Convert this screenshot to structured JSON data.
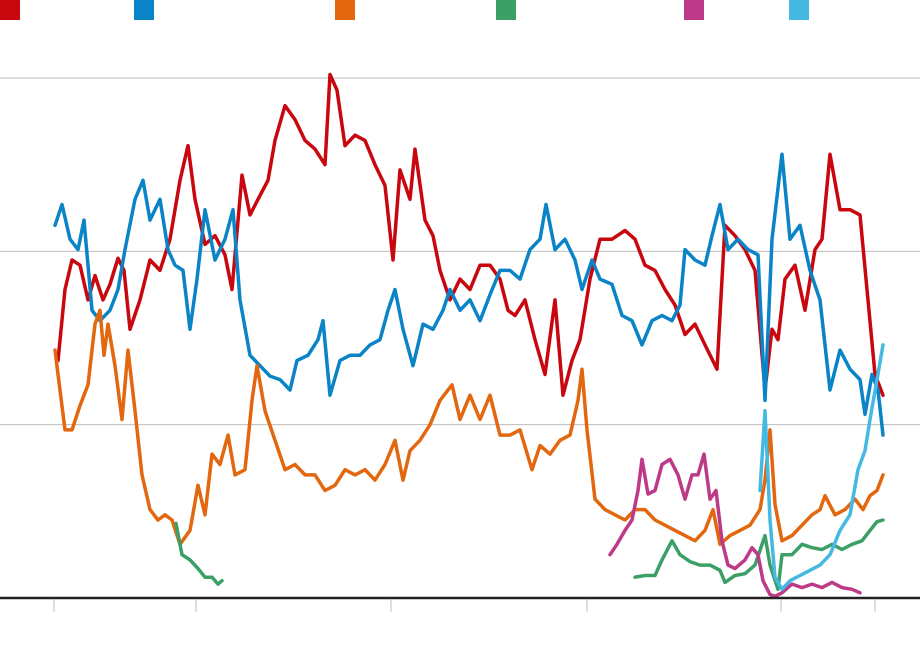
{
  "chart_data": {
    "type": "line",
    "xlim": [
      0,
      9.2
    ],
    "xticks": [
      0.54,
      1.96,
      3.91,
      5.87,
      7.81,
      8.75
    ],
    "ylim": [
      0,
      3
    ],
    "yticks": [
      0,
      1,
      2,
      3
    ],
    "grid": true,
    "series": [
      {
        "color": "#c8070e",
        "x": [
          0.58,
          0.65,
          0.72,
          0.8,
          0.88,
          0.95,
          1.03,
          1.1,
          1.18,
          1.24,
          1.3,
          1.4,
          1.5,
          1.6,
          1.7,
          1.8,
          1.88,
          1.95,
          2.05,
          2.15,
          2.25,
          2.32,
          2.42,
          2.5,
          2.58,
          2.68,
          2.75,
          2.85,
          2.95,
          3.05,
          3.15,
          3.25,
          3.3,
          3.37,
          3.45,
          3.55,
          3.65,
          3.75,
          3.85,
          3.93,
          4.0,
          4.1,
          4.15,
          4.25,
          4.33,
          4.4,
          4.5,
          4.6,
          4.7,
          4.8,
          4.9,
          5.0,
          5.08,
          5.15,
          5.25,
          5.35,
          5.45,
          5.55,
          5.63,
          5.72,
          5.8,
          5.9,
          6.0,
          6.12,
          6.25,
          6.35,
          6.45,
          6.55,
          6.65,
          6.75,
          6.85,
          6.95,
          7.05,
          7.17,
          7.25,
          7.35,
          7.45,
          7.55,
          7.65,
          7.72,
          7.78,
          7.85,
          7.95,
          8.05,
          8.15,
          8.22,
          8.3,
          8.4,
          8.5,
          8.6,
          8.67,
          8.75,
          8.83
        ],
        "values": [
          1.37,
          1.78,
          1.95,
          1.92,
          1.72,
          1.86,
          1.72,
          1.81,
          1.96,
          1.89,
          1.55,
          1.72,
          1.95,
          1.89,
          2.07,
          2.41,
          2.61,
          2.3,
          2.04,
          2.09,
          1.98,
          1.78,
          2.44,
          2.21,
          2.3,
          2.41,
          2.64,
          2.84,
          2.76,
          2.64,
          2.59,
          2.5,
          3.02,
          2.93,
          2.61,
          2.67,
          2.64,
          2.5,
          2.38,
          1.95,
          2.47,
          2.3,
          2.59,
          2.18,
          2.09,
          1.89,
          1.72,
          1.84,
          1.78,
          1.92,
          1.92,
          1.84,
          1.66,
          1.63,
          1.72,
          1.49,
          1.29,
          1.72,
          1.17,
          1.37,
          1.49,
          1.84,
          2.07,
          2.07,
          2.12,
          2.07,
          1.92,
          1.89,
          1.78,
          1.69,
          1.52,
          1.58,
          1.46,
          1.32,
          2.15,
          2.09,
          2.01,
          1.89,
          1.2,
          1.55,
          1.49,
          1.84,
          1.92,
          1.66,
          2.01,
          2.07,
          2.56,
          2.24,
          2.24,
          2.21,
          1.78,
          1.29,
          1.17
        ]
      },
      {
        "color": "#0a84c6",
        "x": [
          0.55,
          0.62,
          0.7,
          0.78,
          0.84,
          0.92,
          1.0,
          1.1,
          1.18,
          1.25,
          1.35,
          1.43,
          1.5,
          1.6,
          1.68,
          1.75,
          1.83,
          1.9,
          1.97,
          2.05,
          2.15,
          2.25,
          2.33,
          2.4,
          2.5,
          2.6,
          2.7,
          2.8,
          2.9,
          2.97,
          3.08,
          3.18,
          3.23,
          3.3,
          3.4,
          3.5,
          3.6,
          3.7,
          3.8,
          3.88,
          3.95,
          4.03,
          4.13,
          4.23,
          4.33,
          4.43,
          4.5,
          4.6,
          4.7,
          4.8,
          4.9,
          5.0,
          5.1,
          5.2,
          5.3,
          5.4,
          5.46,
          5.55,
          5.65,
          5.75,
          5.82,
          5.92,
          6.0,
          6.12,
          6.22,
          6.32,
          6.42,
          6.52,
          6.62,
          6.72,
          6.8,
          6.85,
          6.95,
          7.05,
          7.12,
          7.2,
          7.28,
          7.38,
          7.48,
          7.58,
          7.65,
          7.72,
          7.82,
          7.9,
          8.0,
          8.1,
          8.2,
          8.3,
          8.4,
          8.5,
          8.6,
          8.65,
          8.72,
          8.78,
          8.83
        ],
        "values": [
          2.15,
          2.27,
          2.07,
          2.01,
          2.18,
          1.66,
          1.6,
          1.66,
          1.78,
          2.01,
          2.3,
          2.41,
          2.18,
          2.3,
          2.01,
          1.92,
          1.89,
          1.55,
          1.84,
          2.24,
          1.95,
          2.07,
          2.24,
          1.72,
          1.4,
          1.34,
          1.28,
          1.26,
          1.2,
          1.37,
          1.4,
          1.49,
          1.6,
          1.17,
          1.37,
          1.4,
          1.4,
          1.46,
          1.49,
          1.66,
          1.78,
          1.55,
          1.34,
          1.58,
          1.55,
          1.66,
          1.78,
          1.66,
          1.72,
          1.6,
          1.75,
          1.89,
          1.89,
          1.84,
          2.01,
          2.07,
          2.27,
          2.01,
          2.07,
          1.95,
          1.78,
          1.95,
          1.84,
          1.81,
          1.63,
          1.6,
          1.46,
          1.6,
          1.63,
          1.6,
          1.69,
          2.01,
          1.95,
          1.92,
          2.09,
          2.27,
          2.01,
          2.07,
          2.01,
          1.98,
          1.14,
          2.07,
          2.56,
          2.07,
          2.15,
          1.89,
          1.72,
          1.2,
          1.43,
          1.32,
          1.26,
          1.06,
          1.29,
          1.2,
          0.94
        ]
      },
      {
        "color": "#e2670e",
        "x": [
          0.55,
          0.58,
          0.65,
          0.72,
          0.8,
          0.88,
          0.95,
          1.0,
          1.04,
          1.08,
          1.15,
          1.22,
          1.28,
          1.35,
          1.42,
          1.5,
          1.58,
          1.65,
          1.72,
          1.8,
          1.9,
          1.98,
          2.05,
          2.12,
          2.2,
          2.28,
          2.35,
          2.45,
          2.52,
          2.57,
          2.65,
          2.75,
          2.85,
          2.95,
          3.05,
          3.15,
          3.25,
          3.35,
          3.45,
          3.55,
          3.65,
          3.75,
          3.85,
          3.95,
          4.03,
          4.1,
          4.2,
          4.3,
          4.4,
          4.52,
          4.6,
          4.7,
          4.8,
          4.9,
          5.0,
          5.1,
          5.2,
          5.32,
          5.4,
          5.5,
          5.6,
          5.7,
          5.78,
          5.82,
          5.87,
          5.95,
          6.05,
          6.15,
          6.25,
          6.35,
          6.45,
          6.55,
          6.65,
          6.75,
          6.85,
          6.95,
          7.05,
          7.13,
          7.2,
          7.3,
          7.4,
          7.5,
          7.6,
          7.65,
          7.7,
          7.75,
          7.82,
          7.92,
          8.02,
          8.12,
          8.2,
          8.25,
          8.35,
          8.45,
          8.55,
          8.63,
          8.7,
          8.77,
          8.83
        ],
        "values": [
          1.43,
          1.29,
          0.97,
          0.97,
          1.11,
          1.23,
          1.58,
          1.66,
          1.4,
          1.58,
          1.34,
          1.03,
          1.43,
          1.08,
          0.71,
          0.51,
          0.45,
          0.48,
          0.45,
          0.31,
          0.39,
          0.65,
          0.48,
          0.83,
          0.77,
          0.94,
          0.71,
          0.74,
          1.14,
          1.34,
          1.08,
          0.91,
          0.74,
          0.77,
          0.71,
          0.71,
          0.62,
          0.65,
          0.74,
          0.71,
          0.74,
          0.68,
          0.77,
          0.91,
          0.68,
          0.85,
          0.91,
          1.0,
          1.14,
          1.23,
          1.03,
          1.17,
          1.03,
          1.17,
          0.94,
          0.94,
          0.97,
          0.74,
          0.88,
          0.83,
          0.91,
          0.94,
          1.14,
          1.32,
          0.97,
          0.57,
          0.51,
          0.48,
          0.45,
          0.51,
          0.51,
          0.45,
          0.42,
          0.39,
          0.36,
          0.33,
          0.39,
          0.51,
          0.31,
          0.36,
          0.39,
          0.42,
          0.51,
          0.68,
          0.97,
          0.54,
          0.33,
          0.36,
          0.42,
          0.48,
          0.51,
          0.59,
          0.48,
          0.51,
          0.57,
          0.51,
          0.59,
          0.62,
          0.71
        ]
      },
      {
        "color": "#3b9f66",
        "x": [
          1.76,
          1.82,
          1.9,
          1.98,
          2.05,
          2.12,
          2.18,
          2.22,
          null,
          6.35,
          6.45,
          6.55,
          6.62,
          6.72,
          6.8,
          6.9,
          7.0,
          7.1,
          7.2,
          7.25,
          7.35,
          7.45,
          7.55,
          7.65,
          7.7,
          7.78,
          7.82,
          7.92,
          8.02,
          8.12,
          8.22,
          8.32,
          8.42,
          8.52,
          8.62,
          8.7,
          8.77,
          8.83
        ],
        "values": [
          0.43,
          0.25,
          0.22,
          0.17,
          0.12,
          0.12,
          0.08,
          0.1,
          null,
          0.12,
          0.13,
          0.13,
          0.22,
          0.33,
          0.25,
          0.21,
          0.19,
          0.19,
          0.16,
          0.09,
          0.13,
          0.14,
          0.19,
          0.36,
          0.19,
          0.05,
          0.25,
          0.25,
          0.31,
          0.29,
          0.28,
          0.31,
          0.28,
          0.31,
          0.33,
          0.39,
          0.44,
          0.45
        ]
      },
      {
        "color": "#bc3a88",
        "x": [
          6.1,
          6.17,
          6.25,
          6.32,
          6.38,
          6.42,
          6.48,
          6.55,
          6.62,
          6.7,
          6.78,
          6.85,
          6.92,
          6.98,
          7.04,
          7.1,
          7.16,
          7.22,
          7.28,
          7.35,
          7.45,
          7.52,
          7.58,
          7.63,
          7.7,
          7.75,
          7.82,
          7.92,
          8.02,
          8.12,
          8.22,
          8.32,
          8.42,
          8.52,
          8.6
        ],
        "values": [
          0.25,
          0.31,
          0.39,
          0.45,
          0.62,
          0.8,
          0.6,
          0.62,
          0.77,
          0.8,
          0.71,
          0.57,
          0.71,
          0.71,
          0.83,
          0.57,
          0.62,
          0.33,
          0.19,
          0.17,
          0.22,
          0.29,
          0.25,
          0.1,
          0.02,
          0.01,
          0.03,
          0.08,
          0.06,
          0.08,
          0.06,
          0.09,
          0.06,
          0.05,
          0.03
        ]
      },
      {
        "color": "#45b9e2",
        "x": [
          7.6,
          7.65,
          7.7,
          7.75,
          7.82,
          7.9,
          8.0,
          8.1,
          8.2,
          8.3,
          8.4,
          8.5,
          8.58,
          8.65,
          8.7,
          8.77,
          8.83
        ],
        "values": [
          0.62,
          1.08,
          0.45,
          0.12,
          0.05,
          0.1,
          0.13,
          0.16,
          0.19,
          0.25,
          0.39,
          0.48,
          0.74,
          0.85,
          1.03,
          1.26,
          1.46
        ]
      }
    ]
  }
}
